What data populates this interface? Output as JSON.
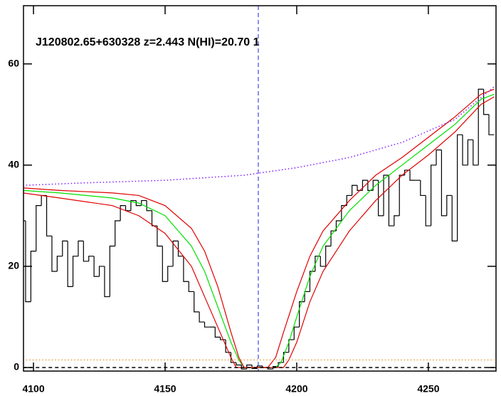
{
  "chart_data": {
    "type": "line",
    "annotation": "J120802.65+630328 z=2.443 N(HI)=20.70 1",
    "xlim": [
      4096.2,
      4275.7
    ],
    "ylim": [
      -0.7,
      71.5
    ],
    "xticks": [
      4100,
      4150,
      4200,
      4250
    ],
    "yticks": [
      0,
      20,
      40,
      60
    ],
    "vline": {
      "x": 4185.4,
      "color": "#2020e0"
    },
    "series": [
      {
        "style": "step",
        "color": "#000000",
        "x": [
          4096,
          4098,
          4100,
          4102,
          4104,
          4106,
          4108,
          4110,
          4112,
          4114,
          4116,
          4118,
          4120,
          4122,
          4124,
          4126,
          4128,
          4130,
          4132,
          4134,
          4136,
          4138,
          4140,
          4142,
          4144,
          4146,
          4148,
          4150,
          4152,
          4154,
          4156,
          4158,
          4160,
          4162,
          4164,
          4166,
          4168,
          4170,
          4172,
          4174,
          4176,
          4178,
          4180,
          4182,
          4184,
          4186,
          4188,
          4190,
          4192,
          4194,
          4196,
          4198,
          4200,
          4202,
          4204,
          4206,
          4208,
          4210,
          4212,
          4214,
          4216,
          4218,
          4220,
          4222,
          4224,
          4226,
          4228,
          4230,
          4232,
          4234,
          4236,
          4238,
          4240,
          4242,
          4244,
          4246,
          4248,
          4250,
          4252,
          4254,
          4256,
          4258,
          4260,
          4262,
          4264,
          4266,
          4268,
          4270,
          4272,
          4274
        ],
        "values": [
          29,
          13,
          23,
          32,
          34,
          26,
          19,
          22,
          25,
          16,
          22,
          25,
          21,
          22,
          18,
          20,
          14,
          24,
          29,
          32,
          31,
          33,
          32,
          33,
          31,
          28,
          24,
          17,
          20,
          25,
          22,
          17,
          15,
          11,
          9,
          8,
          8,
          6,
          5.5,
          3,
          1,
          0.5,
          -0.3,
          0.5,
          -0.2,
          0.3,
          0,
          -0.3,
          0.2,
          1,
          3,
          5.5,
          8,
          13,
          15,
          19,
          22,
          20,
          24,
          27,
          29,
          32,
          34,
          36,
          35,
          37,
          35,
          37,
          30,
          38,
          28,
          30,
          38,
          39,
          37,
          37,
          34,
          28,
          40,
          43,
          30,
          34,
          25,
          46,
          40,
          45,
          40,
          55,
          50,
          46
        ]
      },
      {
        "style": "solid",
        "color": "#00e000",
        "x": [
          4096,
          4110,
          4130,
          4140,
          4150,
          4160,
          4165,
          4170,
          4175,
          4178,
          4180,
          4192,
          4194,
          4197,
          4200,
          4205,
          4210,
          4220,
          4230,
          4240,
          4250,
          4260,
          4270,
          4275
        ],
        "values": [
          35,
          34.5,
          33.5,
          32.5,
          30,
          24,
          19,
          12,
          5,
          1.5,
          0,
          0,
          1,
          5,
          10,
          18,
          24,
          31,
          36,
          40,
          44,
          48,
          53,
          54
        ]
      },
      {
        "style": "solid",
        "color": "#e00000",
        "x": [
          4096,
          4110,
          4130,
          4140,
          4150,
          4160,
          4165,
          4170,
          4175,
          4178,
          4180,
          4189,
          4192,
          4195,
          4200,
          4205,
          4210,
          4220,
          4230,
          4240,
          4250,
          4260,
          4270,
          4275
        ],
        "values": [
          35.5,
          35,
          34.5,
          34,
          32,
          27.5,
          23,
          16,
          7,
          2,
          0,
          0,
          2,
          7,
          15,
          22,
          27,
          33,
          38,
          41.5,
          45.5,
          49.5,
          54,
          55
        ]
      },
      {
        "style": "solid",
        "color": "#e00000",
        "x": [
          4096,
          4110,
          4130,
          4140,
          4150,
          4160,
          4165,
          4170,
          4175,
          4177,
          4195,
          4197,
          4200,
          4205,
          4210,
          4220,
          4230,
          4240,
          4250,
          4260,
          4270,
          4275
        ],
        "values": [
          34.5,
          33.5,
          32,
          30,
          26.5,
          20,
          14,
          8,
          2,
          0,
          0,
          1.5,
          5,
          13,
          19,
          27,
          33,
          38,
          42,
          46.5,
          52,
          53.5
        ]
      },
      {
        "style": "dotted",
        "color": "#8020ff",
        "x": [
          4096,
          4120,
          4150,
          4180,
          4200,
          4220,
          4240,
          4260,
          4275
        ],
        "values": [
          36,
          36.5,
          37,
          38,
          39.5,
          41.5,
          44.5,
          49,
          55.5
        ]
      },
      {
        "style": "dotted",
        "color": "#e0a040",
        "x": [
          4096,
          4275
        ],
        "values": [
          1.5,
          1.5
        ]
      },
      {
        "style": "dashed",
        "color": "#000000",
        "x": [
          4096,
          4275
        ],
        "values": [
          0,
          0
        ]
      }
    ]
  }
}
